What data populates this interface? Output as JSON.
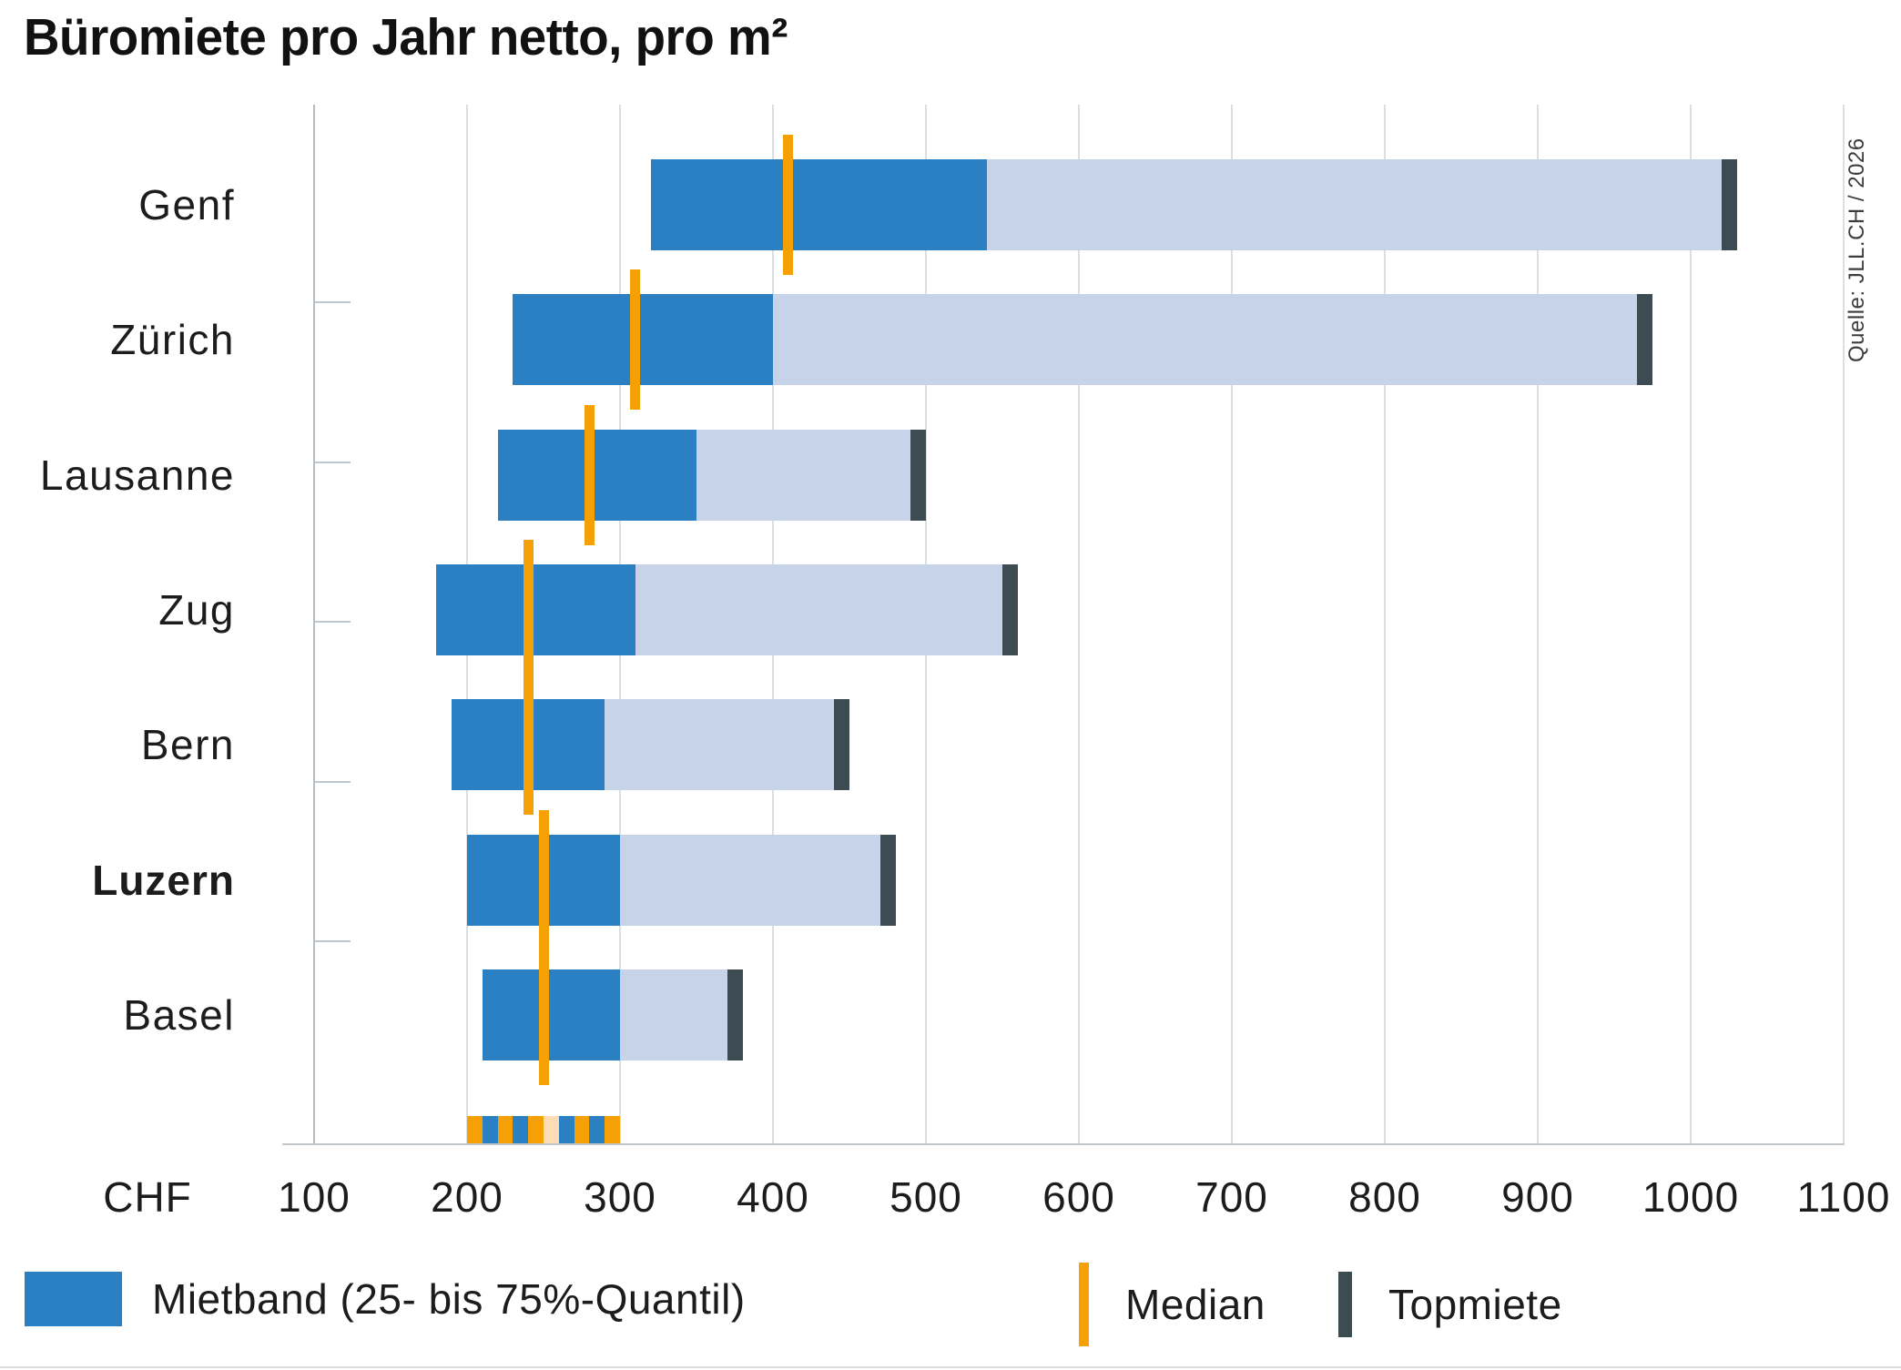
{
  "title": "Büromiete pro Jahr netto, pro m²",
  "source": "Quelle: JLL.CH / 2026",
  "colors": {
    "band_blue": "#2a80c2",
    "range_light_blue": "#c7d3e9",
    "median_orange": "#f5a105",
    "topmiete_slate": "#3d4b52",
    "stripe_peach": "#fbdcb4",
    "gridline_gray": "#dcdee1",
    "axis_gray": "#c2c7cb"
  },
  "chart_data": {
    "type": "bar",
    "orientation": "horizontal",
    "title": "Büromiete pro Jahr netto, pro m²",
    "unit_label": "CHF",
    "xlim": [
      100,
      1100
    ],
    "x_ticks": [
      100,
      200,
      300,
      400,
      500,
      600,
      700,
      800,
      900,
      1000,
      1100
    ],
    "grid": true,
    "rows": [
      {
        "city": "Genf",
        "quantil25": 320,
        "quantil75": 540,
        "median": 410,
        "topmiete": 1025,
        "highlight": false
      },
      {
        "city": "Zürich",
        "quantil25": 230,
        "quantil75": 400,
        "median": 310,
        "topmiete": 970,
        "highlight": false
      },
      {
        "city": "Lausanne",
        "quantil25": 220,
        "quantil75": 350,
        "median": 280,
        "topmiete": 495,
        "highlight": false
      },
      {
        "city": "Zug",
        "quantil25": 180,
        "quantil75": 310,
        "median": 240,
        "topmiete": 555,
        "highlight": false
      },
      {
        "city": "Bern",
        "quantil25": 190,
        "quantil75": 290,
        "median": 240,
        "topmiete": 445,
        "highlight": false
      },
      {
        "city": "Luzern",
        "quantil25": 200,
        "quantil75": 300,
        "median": 250,
        "topmiete": 475,
        "highlight": true
      },
      {
        "city": "Basel",
        "quantil25": 210,
        "quantil75": 300,
        "median": 250,
        "topmiete": 375,
        "highlight": false
      }
    ],
    "legend": [
      {
        "label": "Mietband (25- bis 75%-Quantil)",
        "marker": "band"
      },
      {
        "label": "Median",
        "marker": "median"
      },
      {
        "label": "Topmiete",
        "marker": "top"
      }
    ],
    "footer_stripe": {
      "from": 200,
      "to": 300,
      "stripe_colors": [
        "#f5a105",
        "#2a80c2",
        "#f5a105",
        "#2a80c2",
        "#f5a105",
        "#fbdcb4",
        "#2a80c2",
        "#f5a105",
        "#2a80c2",
        "#f5a105"
      ]
    }
  }
}
